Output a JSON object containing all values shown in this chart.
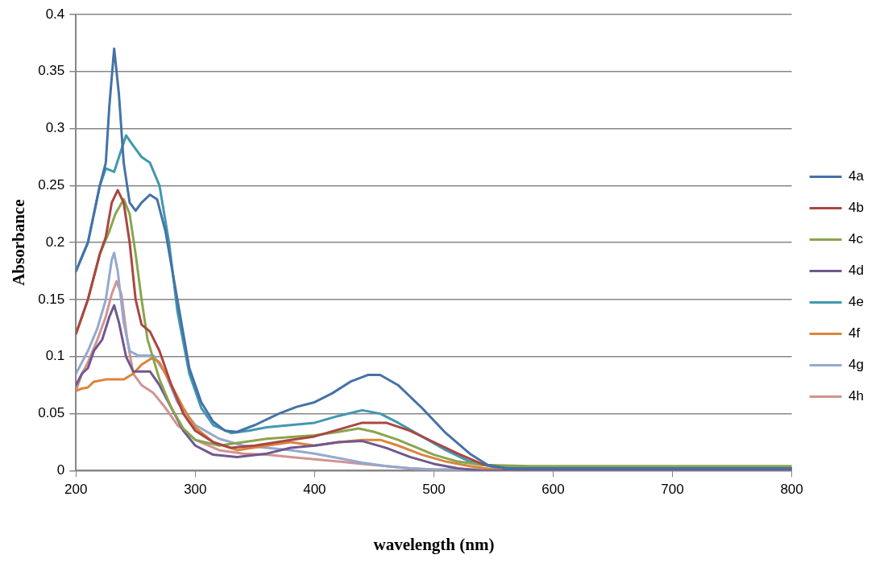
{
  "chart_data": {
    "type": "line",
    "xlabel": "wavelength (nm)",
    "ylabel": "Absorbance",
    "xlim": [
      200,
      800
    ],
    "xticks": [
      200,
      300,
      400,
      500,
      600,
      700,
      800
    ],
    "ylim": [
      0,
      0.4
    ],
    "yticks": [
      0,
      0.05,
      0.1,
      0.15,
      0.2,
      0.25,
      0.3,
      0.35,
      0.4
    ],
    "grid": "y",
    "legend": "right",
    "marker": "none",
    "line_style": "solid",
    "series": [
      {
        "name": "4a",
        "color": "#4572a7",
        "x": [
          200,
          210,
          220,
          225,
          228,
          232,
          236,
          240,
          245,
          250,
          255,
          262,
          268,
          275,
          285,
          295,
          305,
          315,
          325,
          335,
          350,
          370,
          385,
          400,
          415,
          430,
          445,
          455,
          470,
          490,
          510,
          530,
          545,
          560,
          600,
          800
        ],
        "values": [
          0.175,
          0.2,
          0.25,
          0.27,
          0.32,
          0.37,
          0.33,
          0.27,
          0.235,
          0.228,
          0.235,
          0.242,
          0.238,
          0.21,
          0.15,
          0.09,
          0.06,
          0.043,
          0.035,
          0.034,
          0.04,
          0.05,
          0.056,
          0.06,
          0.068,
          0.078,
          0.084,
          0.084,
          0.075,
          0.055,
          0.033,
          0.015,
          0.005,
          0.002,
          0.002,
          0.002
        ]
      },
      {
        "name": "4b",
        "color": "#aa4643",
        "x": [
          200,
          210,
          220,
          225,
          230,
          235,
          240,
          245,
          250,
          255,
          262,
          270,
          280,
          290,
          300,
          315,
          330,
          350,
          380,
          400,
          420,
          440,
          460,
          480,
          500,
          520,
          540,
          560,
          800
        ],
        "values": [
          0.12,
          0.15,
          0.19,
          0.205,
          0.235,
          0.246,
          0.235,
          0.2,
          0.15,
          0.128,
          0.122,
          0.105,
          0.075,
          0.05,
          0.035,
          0.025,
          0.02,
          0.022,
          0.027,
          0.03,
          0.036,
          0.042,
          0.042,
          0.035,
          0.025,
          0.015,
          0.006,
          0.002,
          0.002
        ]
      },
      {
        "name": "4c",
        "color": "#89a54e",
        "x": [
          200,
          210,
          220,
          228,
          233,
          240,
          245,
          250,
          255,
          260,
          270,
          280,
          290,
          300,
          320,
          340,
          360,
          400,
          420,
          437,
          450,
          470,
          500,
          520,
          540,
          580,
          800
        ],
        "values": [
          0.12,
          0.15,
          0.19,
          0.21,
          0.225,
          0.238,
          0.225,
          0.19,
          0.15,
          0.115,
          0.08,
          0.055,
          0.037,
          0.027,
          0.022,
          0.025,
          0.028,
          0.031,
          0.034,
          0.037,
          0.034,
          0.027,
          0.014,
          0.008,
          0.005,
          0.004,
          0.004
        ]
      },
      {
        "name": "4d",
        "color": "#71588f",
        "x": [
          200,
          205,
          210,
          215,
          222,
          228,
          232,
          236,
          242,
          248,
          262,
          270,
          280,
          290,
          300,
          315,
          335,
          360,
          380,
          400,
          420,
          440,
          460,
          480,
          500,
          520,
          540,
          800
        ],
        "values": [
          0.075,
          0.085,
          0.09,
          0.105,
          0.115,
          0.135,
          0.145,
          0.13,
          0.1,
          0.087,
          0.087,
          0.075,
          0.055,
          0.035,
          0.022,
          0.014,
          0.012,
          0.015,
          0.02,
          0.022,
          0.025,
          0.026,
          0.02,
          0.012,
          0.006,
          0.002,
          0,
          0
        ]
      },
      {
        "name": "4e",
        "color": "#4198af",
        "x": [
          200,
          210,
          220,
          225,
          232,
          236,
          242,
          248,
          255,
          262,
          270,
          278,
          285,
          295,
          305,
          315,
          330,
          345,
          360,
          380,
          400,
          420,
          440,
          455,
          470,
          490,
          510,
          530,
          550,
          600,
          800
        ],
        "values": [
          0.175,
          0.2,
          0.25,
          0.265,
          0.262,
          0.275,
          0.294,
          0.285,
          0.275,
          0.27,
          0.25,
          0.2,
          0.14,
          0.085,
          0.055,
          0.04,
          0.033,
          0.035,
          0.038,
          0.04,
          0.042,
          0.048,
          0.053,
          0.05,
          0.042,
          0.03,
          0.018,
          0.008,
          0.003,
          0.002,
          0.002
        ]
      },
      {
        "name": "4f",
        "color": "#db843d",
        "x": [
          200,
          205,
          210,
          215,
          225,
          240,
          248,
          255,
          264,
          270,
          280,
          290,
          300,
          315,
          335,
          360,
          380,
          400,
          420,
          440,
          455,
          470,
          490,
          510,
          530,
          550,
          800
        ],
        "values": [
          0.07,
          0.072,
          0.073,
          0.078,
          0.08,
          0.08,
          0.085,
          0.093,
          0.099,
          0.095,
          0.075,
          0.055,
          0.038,
          0.025,
          0.018,
          0.022,
          0.025,
          0.022,
          0.025,
          0.027,
          0.027,
          0.022,
          0.014,
          0.008,
          0.004,
          0.001,
          0.001
        ]
      },
      {
        "name": "4g",
        "color": "#93a9cf",
        "x": [
          200,
          205,
          210,
          218,
          225,
          230,
          232,
          235,
          240,
          245,
          252,
          265,
          275,
          285,
          300,
          320,
          340,
          360,
          380,
          400,
          420,
          440,
          460,
          480,
          500,
          800
        ],
        "values": [
          0.085,
          0.095,
          0.105,
          0.125,
          0.15,
          0.185,
          0.191,
          0.175,
          0.13,
          0.105,
          0.101,
          0.101,
          0.085,
          0.06,
          0.04,
          0.028,
          0.022,
          0.02,
          0.018,
          0.015,
          0.011,
          0.007,
          0.004,
          0.002,
          0.001,
          0.001
        ]
      },
      {
        "name": "4h",
        "color": "#d19392",
        "x": [
          200,
          205,
          210,
          218,
          225,
          230,
          234,
          238,
          243,
          248,
          255,
          265,
          275,
          285,
          300,
          320,
          340,
          360,
          380,
          400,
          420,
          440,
          460,
          480,
          500,
          800
        ],
        "values": [
          0.07,
          0.085,
          0.095,
          0.115,
          0.135,
          0.155,
          0.166,
          0.155,
          0.115,
          0.085,
          0.075,
          0.068,
          0.055,
          0.04,
          0.027,
          0.018,
          0.015,
          0.014,
          0.012,
          0.01,
          0.008,
          0.006,
          0.004,
          0.002,
          0.001,
          0.001
        ]
      }
    ]
  }
}
